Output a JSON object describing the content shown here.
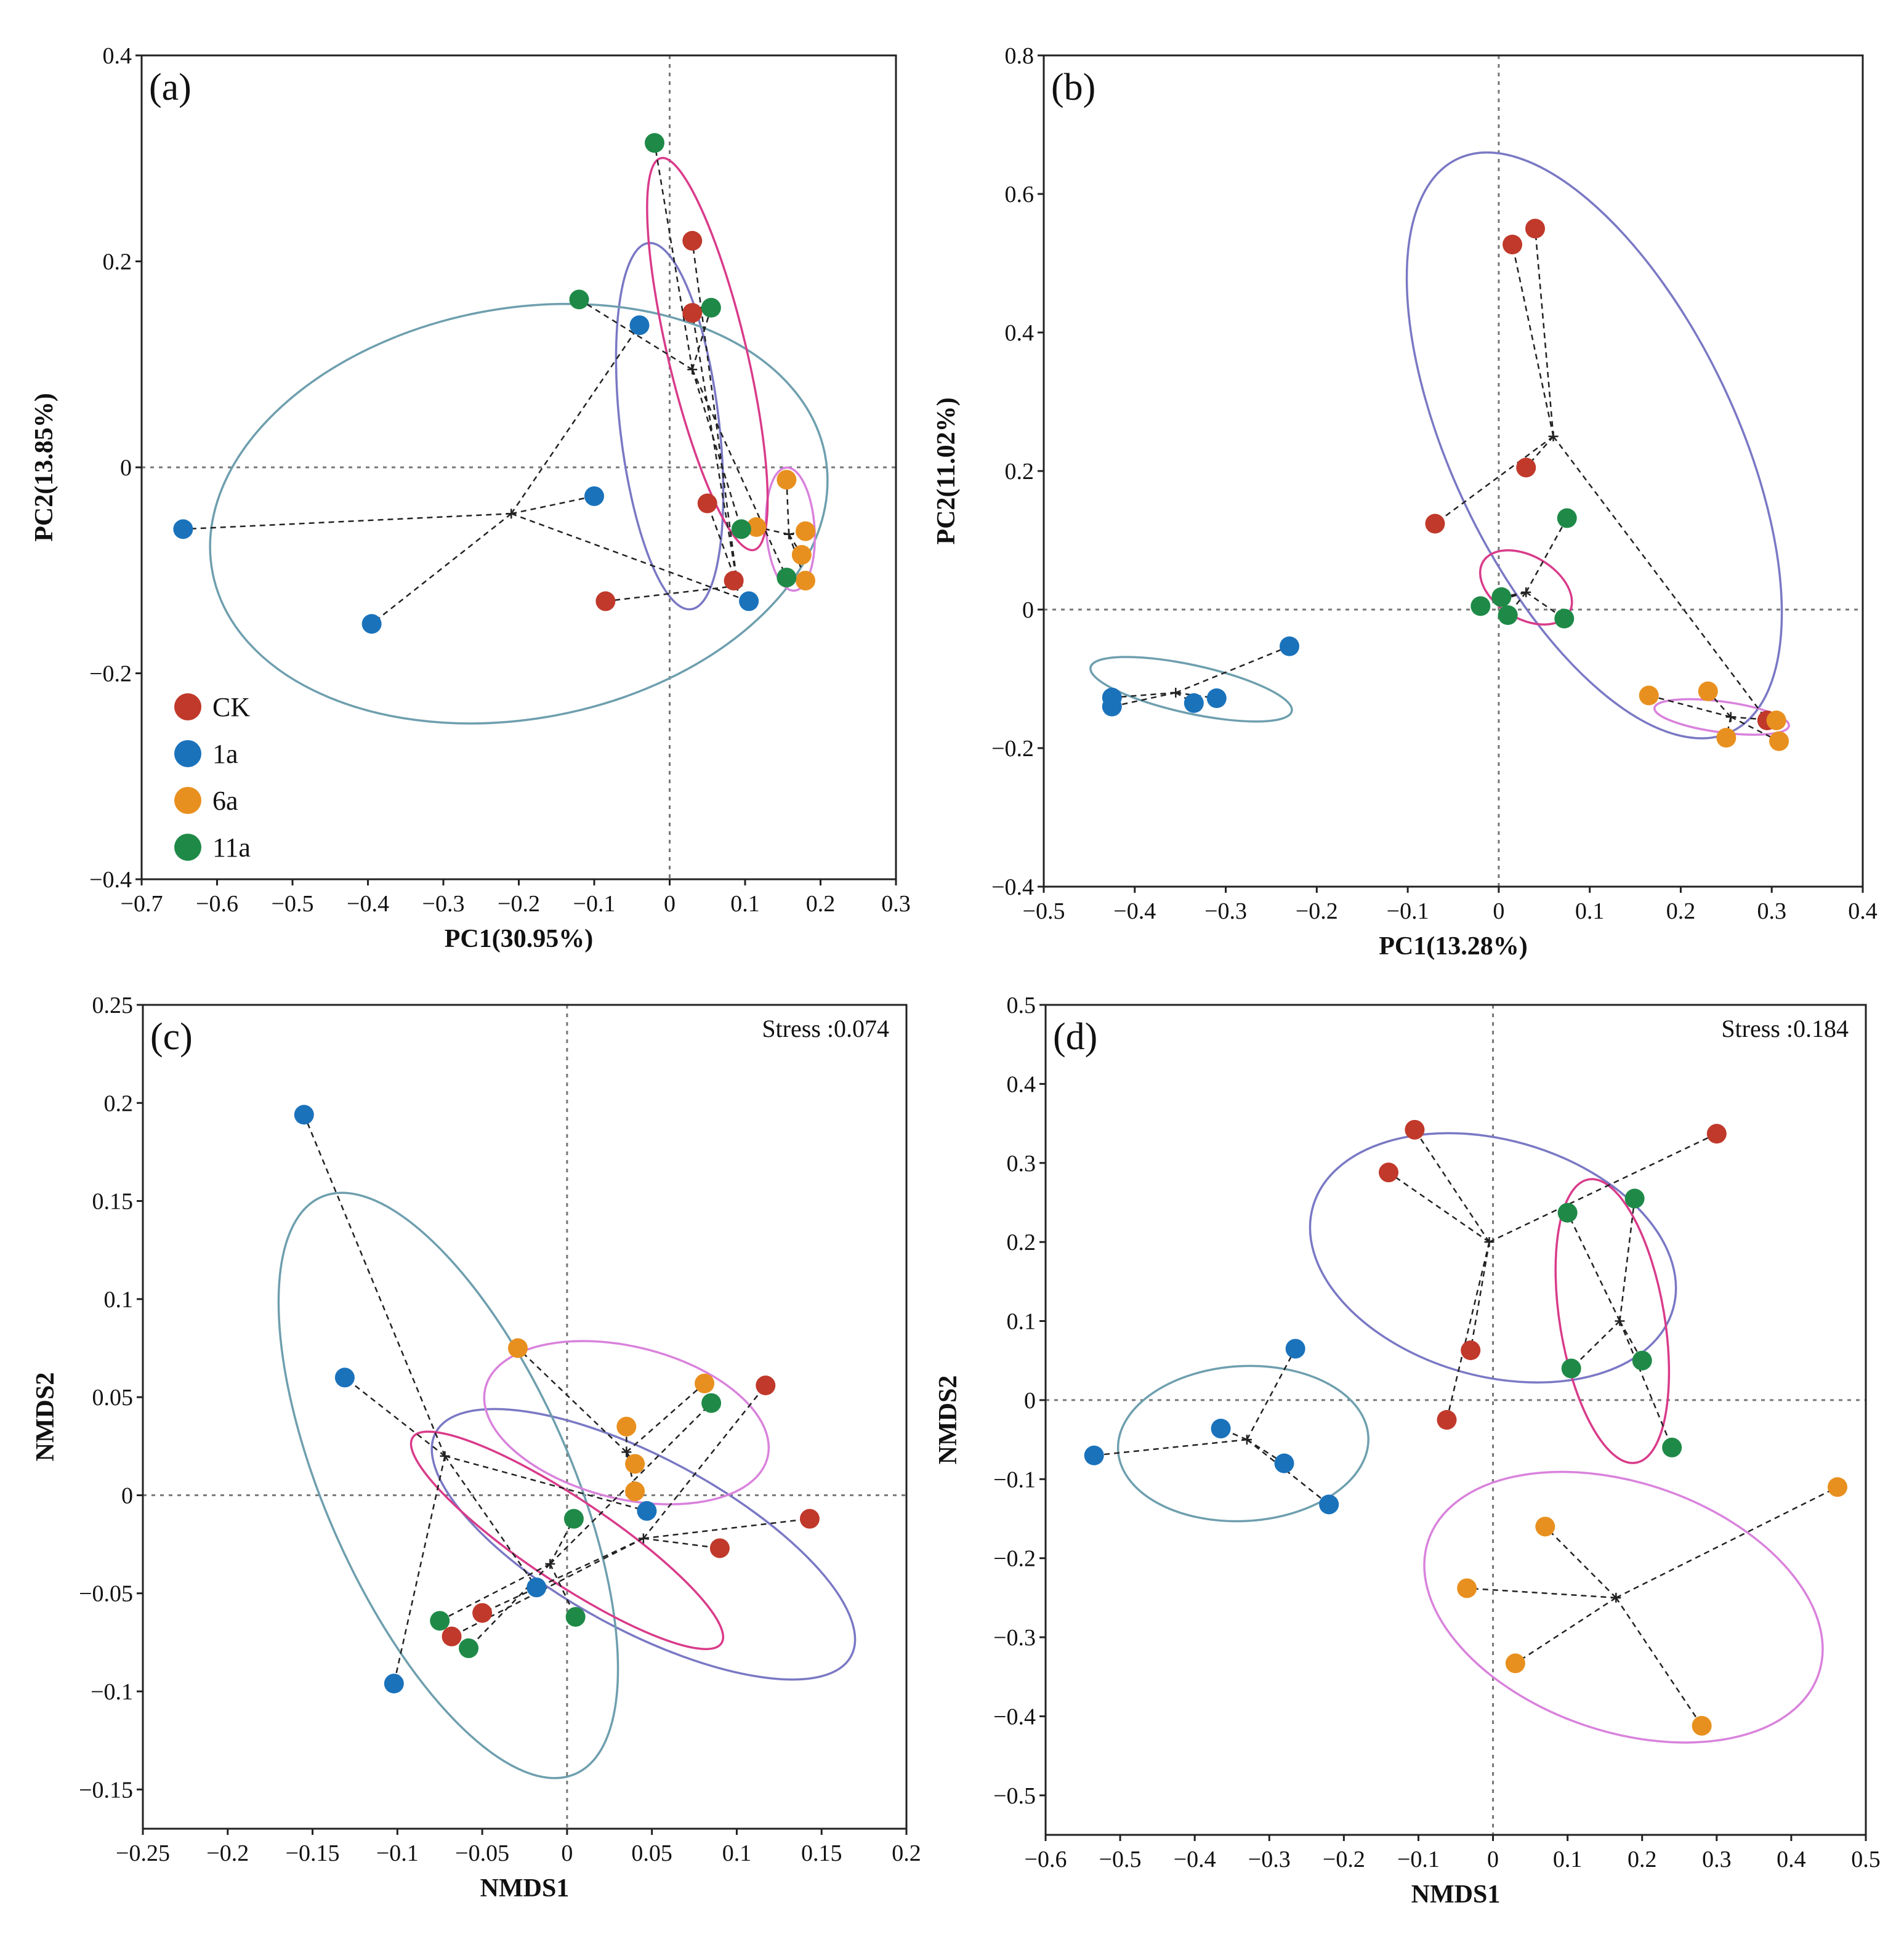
{
  "colors": {
    "CK": "#c0392b",
    "1a": "#1a72bb",
    "6a": "#e8901f",
    "11a": "#1f8a48",
    "ellipse_CK": "#7a78c4",
    "ellipse_1a": "#6e9fae",
    "ellipse_6a": "#d982dc",
    "ellipse_11a": "#d93b8a"
  },
  "legend": [
    {
      "key": "CK",
      "label": "CK"
    },
    {
      "key": "1a",
      "label": "1a"
    },
    {
      "key": "6a",
      "label": "6a"
    },
    {
      "key": "11a",
      "label": "11a"
    }
  ],
  "chart_data": [
    {
      "id": "a",
      "type": "scatter",
      "panel_label": "(a)",
      "stress": "",
      "xlabel": "PC1(30.95%)",
      "ylabel": "PC2(13.85%)",
      "xlim": [
        -0.7,
        0.3
      ],
      "ylim": [
        -0.4,
        0.4
      ],
      "xticks": [
        -0.7,
        -0.6,
        -0.5,
        -0.4,
        -0.3,
        -0.2,
        -0.1,
        0,
        0.1,
        0.2,
        0.3
      ],
      "yticks": [
        -0.4,
        -0.2,
        0,
        0.2,
        0.4
      ],
      "xtick_labels": [
        "−0.7",
        "−0.6",
        "−0.5",
        "−0.4",
        "−0.3",
        "−0.2",
        "−0.1",
        "0",
        "0.1",
        "0.2",
        "0.3"
      ],
      "ytick_labels": [
        "−0.4",
        "−0.2",
        "0",
        "0.2",
        "0.4"
      ],
      "legend_position": "bottom-left",
      "series": [
        {
          "name": "CK",
          "centroid": [
            0.09,
            -0.115
          ],
          "points": [
            [
              0.03,
              0.22
            ],
            [
              0.03,
              0.15
            ],
            [
              0.05,
              -0.035
            ],
            [
              -0.085,
              -0.13
            ],
            [
              0.085,
              -0.11
            ]
          ],
          "ellipse": {
            "cx": 0.0,
            "cy": 0.04,
            "rx": 0.18,
            "ry": 0.065,
            "angle_deg": -81
          }
        },
        {
          "name": "1a",
          "centroid": [
            -0.21,
            -0.045
          ],
          "points": [
            [
              -0.645,
              -0.06
            ],
            [
              -0.395,
              -0.152
            ],
            [
              -0.1,
              -0.028
            ],
            [
              -0.04,
              0.138
            ],
            [
              0.105,
              -0.13
            ]
          ],
          "ellipse": {
            "cx": -0.2,
            "cy": -0.045,
            "rx": 0.41,
            "ry": 0.2,
            "angle_deg": 8
          }
        },
        {
          "name": "6a",
          "centroid": [
            0.158,
            -0.065
          ],
          "points": [
            [
              0.155,
              -0.012
            ],
            [
              0.115,
              -0.058
            ],
            [
              0.18,
              -0.062
            ],
            [
              0.175,
              -0.085
            ],
            [
              0.18,
              -0.11
            ]
          ],
          "ellipse": {
            "cx": 0.16,
            "cy": -0.06,
            "rx": 0.06,
            "ry": 0.032,
            "angle_deg": -85
          }
        },
        {
          "name": "11a",
          "centroid": [
            0.03,
            0.095
          ],
          "points": [
            [
              -0.02,
              0.315
            ],
            [
              -0.12,
              0.163
            ],
            [
              0.055,
              0.155
            ],
            [
              0.095,
              -0.06
            ],
            [
              0.155,
              -0.107
            ]
          ],
          "ellipse": {
            "cx": 0.05,
            "cy": 0.11,
            "rx": 0.2,
            "ry": 0.05,
            "angle_deg": -72
          }
        }
      ]
    },
    {
      "id": "b",
      "type": "scatter",
      "panel_label": "(b)",
      "stress": "",
      "xlabel": "PC1(13.28%)",
      "ylabel": "PC2(11.02%)",
      "xlim": [
        -0.5,
        0.4
      ],
      "ylim": [
        -0.4,
        0.8
      ],
      "xticks": [
        -0.5,
        -0.4,
        -0.3,
        -0.2,
        -0.1,
        0,
        0.1,
        0.2,
        0.3,
        0.4
      ],
      "yticks": [
        -0.4,
        -0.2,
        0,
        0.2,
        0.4,
        0.6,
        0.8
      ],
      "xtick_labels": [
        "−0.5",
        "−0.4",
        "−0.3",
        "−0.2",
        "−0.1",
        "0",
        "0.1",
        "0.2",
        "0.3",
        "0.4"
      ],
      "ytick_labels": [
        "−0.4",
        "−0.2",
        "0",
        "0.2",
        "0.4",
        "0.6",
        "0.8"
      ],
      "legend_position": "none",
      "series": [
        {
          "name": "CK",
          "centroid": [
            0.06,
            0.25
          ],
          "points": [
            [
              0.015,
              0.527
            ],
            [
              0.04,
              0.55
            ],
            [
              0.03,
              0.205
            ],
            [
              -0.07,
              0.124
            ],
            [
              0.295,
              -0.16
            ]
          ],
          "ellipse": {
            "cx": 0.105,
            "cy": 0.237,
            "rx": 0.44,
            "ry": 0.16,
            "angle_deg": -70
          }
        },
        {
          "name": "1a",
          "centroid": [
            -0.355,
            -0.12
          ],
          "points": [
            [
              -0.425,
              -0.127
            ],
            [
              -0.425,
              -0.14
            ],
            [
              -0.335,
              -0.135
            ],
            [
              -0.31,
              -0.128
            ],
            [
              -0.23,
              -0.053
            ]
          ],
          "ellipse": {
            "cx": -0.338,
            "cy": -0.115,
            "rx": 0.115,
            "ry": 0.034,
            "angle_deg": -16
          }
        },
        {
          "name": "6a",
          "centroid": [
            0.255,
            -0.155
          ],
          "points": [
            [
              0.165,
              -0.124
            ],
            [
              0.23,
              -0.118
            ],
            [
              0.25,
              -0.185
            ],
            [
              0.305,
              -0.16
            ],
            [
              0.308,
              -0.19
            ]
          ],
          "ellipse": {
            "cx": 0.245,
            "cy": -0.155,
            "rx": 0.075,
            "ry": 0.022,
            "angle_deg": -10
          }
        },
        {
          "name": "11a",
          "centroid": [
            0.03,
            0.025
          ],
          "points": [
            [
              -0.02,
              0.005
            ],
            [
              0.003,
              0.018
            ],
            [
              0.01,
              -0.008
            ],
            [
              0.075,
              0.132
            ],
            [
              0.072,
              -0.013
            ]
          ],
          "ellipse": {
            "cx": 0.03,
            "cy": 0.032,
            "rx": 0.06,
            "ry": 0.04,
            "angle_deg": -38
          }
        }
      ]
    },
    {
      "id": "c",
      "type": "scatter",
      "panel_label": "(c)",
      "stress": "Stress :0.074",
      "xlabel": "NMDS1",
      "ylabel": "NMDS2",
      "xlim": [
        -0.25,
        0.2
      ],
      "ylim": [
        -0.17,
        0.25
      ],
      "xticks": [
        -0.25,
        -0.2,
        -0.15,
        -0.1,
        -0.05,
        0,
        0.05,
        0.1,
        0.15,
        0.2
      ],
      "yticks": [
        -0.15,
        -0.1,
        -0.05,
        0,
        0.05,
        0.1,
        0.15,
        0.2,
        0.25
      ],
      "xtick_labels": [
        "−0.25",
        "−0.2",
        "−0.15",
        "−0.1",
        "−0.05",
        "0",
        "0.05",
        "0.1",
        "0.15",
        "0.2"
      ],
      "ytick_labels": [
        "−0.15",
        "−0.1",
        "−0.05",
        "0",
        "0.05",
        "0.1",
        "0.15",
        "0.2",
        "0.25"
      ],
      "legend_position": "none",
      "series": [
        {
          "name": "CK",
          "centroid": [
            0.045,
            -0.022
          ],
          "points": [
            [
              0.117,
              0.056
            ],
            [
              0.09,
              -0.027
            ],
            [
              0.143,
              -0.012
            ],
            [
              -0.05,
              -0.06
            ],
            [
              -0.068,
              -0.072
            ]
          ],
          "ellipse": {
            "cx": 0.045,
            "cy": -0.025,
            "rx": 0.135,
            "ry": 0.045,
            "angle_deg": -25
          }
        },
        {
          "name": "1a",
          "centroid": [
            -0.072,
            0.02
          ],
          "points": [
            [
              -0.155,
              0.194
            ],
            [
              -0.131,
              0.06
            ],
            [
              -0.102,
              -0.096
            ],
            [
              -0.018,
              -0.047
            ],
            [
              0.047,
              -0.008
            ]
          ],
          "ellipse": {
            "cx": -0.07,
            "cy": 0.005,
            "rx": 0.165,
            "ry": 0.07,
            "angle_deg": -63
          }
        },
        {
          "name": "6a",
          "centroid": [
            0.035,
            0.022
          ],
          "points": [
            [
              -0.029,
              0.075
            ],
            [
              0.035,
              0.035
            ],
            [
              0.081,
              0.057
            ],
            [
              0.04,
              0.016
            ],
            [
              0.04,
              0.002
            ]
          ],
          "ellipse": {
            "cx": 0.035,
            "cy": 0.037,
            "rx": 0.085,
            "ry": 0.039,
            "angle_deg": -12
          }
        },
        {
          "name": "11a",
          "centroid": [
            -0.01,
            -0.035
          ],
          "points": [
            [
              0.004,
              -0.012
            ],
            [
              0.085,
              0.047
            ],
            [
              -0.075,
              -0.064
            ],
            [
              -0.058,
              -0.078
            ],
            [
              0.005,
              -0.062
            ]
          ],
          "ellipse": {
            "cx": 0.0,
            "cy": -0.023,
            "rx": 0.105,
            "ry": 0.022,
            "angle_deg": -30
          }
        }
      ]
    },
    {
      "id": "d",
      "type": "scatter",
      "panel_label": "(d)",
      "stress": "Stress :0.184",
      "xlabel": "NMDS1",
      "ylabel": "NMDS2",
      "xlim": [
        -0.6,
        0.5
      ],
      "ylim": [
        -0.55,
        0.5
      ],
      "xticks": [
        -0.6,
        -0.5,
        -0.4,
        -0.3,
        -0.2,
        -0.1,
        0,
        0.1,
        0.2,
        0.3,
        0.4,
        0.5
      ],
      "yticks": [
        -0.5,
        -0.4,
        -0.3,
        -0.2,
        -0.1,
        0,
        0.1,
        0.2,
        0.3,
        0.4,
        0.5
      ],
      "xtick_labels": [
        "−0.6",
        "−0.5",
        "−0.4",
        "−0.3",
        "−0.2",
        "−0.1",
        "0",
        "0.1",
        "0.2",
        "0.3",
        "0.4",
        "0.5"
      ],
      "ytick_labels": [
        "−0.5",
        "−0.4",
        "−0.3",
        "−0.2",
        "−0.1",
        "0",
        "0.1",
        "0.2",
        "0.3",
        "0.4",
        "0.5"
      ],
      "legend_position": "none",
      "series": [
        {
          "name": "CK",
          "centroid": [
            -0.005,
            0.2
          ],
          "points": [
            [
              -0.105,
              0.342
            ],
            [
              -0.14,
              0.288
            ],
            [
              -0.03,
              0.063
            ],
            [
              -0.062,
              -0.025
            ],
            [
              0.3,
              0.337
            ]
          ],
          "ellipse": {
            "cx": 0.0,
            "cy": 0.18,
            "rx": 0.25,
            "ry": 0.15,
            "angle_deg": -15
          }
        },
        {
          "name": "1a",
          "centroid": [
            -0.33,
            -0.05
          ],
          "points": [
            [
              -0.265,
              0.065
            ],
            [
              -0.365,
              -0.036
            ],
            [
              -0.28,
              -0.08
            ],
            [
              -0.22,
              -0.132
            ],
            [
              -0.535,
              -0.07
            ]
          ],
          "ellipse": {
            "cx": -0.335,
            "cy": -0.055,
            "rx": 0.168,
            "ry": 0.098,
            "angle_deg": 3
          }
        },
        {
          "name": "6a",
          "centroid": [
            0.165,
            -0.25
          ],
          "points": [
            [
              0.07,
              -0.16
            ],
            [
              -0.035,
              -0.238
            ],
            [
              0.03,
              -0.333
            ],
            [
              0.28,
              -0.412
            ],
            [
              0.462,
              -0.11
            ]
          ],
          "ellipse": {
            "cx": 0.175,
            "cy": -0.262,
            "rx": 0.275,
            "ry": 0.158,
            "angle_deg": -18
          }
        },
        {
          "name": "11a",
          "centroid": [
            0.17,
            0.1
          ],
          "points": [
            [
              0.1,
              0.237
            ],
            [
              0.19,
              0.255
            ],
            [
              0.105,
              0.04
            ],
            [
              0.2,
              0.05
            ],
            [
              0.24,
              -0.06
            ]
          ],
          "ellipse": {
            "cx": 0.16,
            "cy": 0.1,
            "rx": 0.182,
            "ry": 0.07,
            "angle_deg": -80
          }
        }
      ]
    }
  ]
}
